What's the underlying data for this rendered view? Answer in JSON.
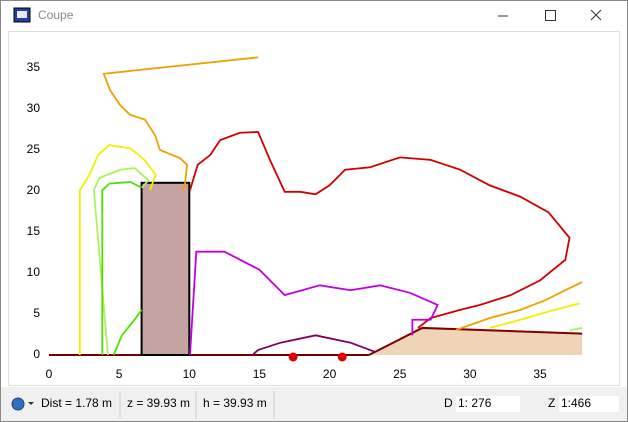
{
  "window": {
    "title": "Coupe"
  },
  "chart_data": {
    "type": "line",
    "xlim": [
      -3,
      40
    ],
    "ylim": [
      -2,
      38
    ],
    "xticks": [
      0,
      5,
      10,
      15,
      20,
      25,
      30,
      35
    ],
    "yticks": [
      0,
      5,
      10,
      15,
      20,
      25,
      30,
      35
    ],
    "series": [
      {
        "color": "#f0a000",
        "x": [
          14.9,
          3.9,
          4.35,
          5.06,
          5.77,
          6.84,
          7.56,
          7.91,
          9.34,
          9.84,
          9.69,
          9.48
        ],
        "values": [
          36.3,
          34.3,
          32.3,
          30.5,
          29.3,
          28.7,
          26.8,
          25.0,
          24.0,
          23.2,
          20.7,
          20.1
        ]
      },
      {
        "color": "#f0a000",
        "x": [
          29.0,
          31.4,
          33.6,
          35.4,
          36.8,
          38.0
        ],
        "values": [
          3.05,
          4.5,
          5.5,
          6.7,
          7.9,
          8.9
        ]
      },
      {
        "color": "#f0f000",
        "x": [
          2.2,
          2.2,
          2.9,
          3.5,
          4.3,
          5.8,
          6.8,
          7.6,
          7.2
        ],
        "values": [
          0,
          20.1,
          22.0,
          24.4,
          25.6,
          25.2,
          23.8,
          22.0,
          20.1
        ]
      },
      {
        "color": "#f0f000",
        "x": [
          31.4,
          33.6,
          35.4,
          37.8
        ],
        "values": [
          3.3,
          4.3,
          5.2,
          6.3
        ]
      },
      {
        "color": "#b0f060",
        "x": [
          4.2,
          3.2,
          3.6,
          5.1,
          6.1,
          7.1,
          6.6
        ],
        "values": [
          0,
          20.1,
          21.6,
          22.6,
          22.8,
          21.3,
          20.4
        ]
      },
      {
        "color": "#b0f060",
        "x": [
          37.1,
          38.0
        ],
        "values": [
          3.0,
          3.3
        ]
      },
      {
        "color": "#50e000",
        "x": [
          3.8,
          3.8,
          4.3,
          5.8,
          6.5
        ],
        "values": [
          0,
          20.1,
          20.9,
          21.1,
          20.5
        ]
      },
      {
        "color": "#50e000",
        "x": [
          4.6,
          5.2,
          6.1,
          6.6
        ],
        "values": [
          0,
          2.4,
          4.3,
          5.5
        ]
      },
      {
        "color": "#d00000",
        "x": [
          10.05,
          10.6,
          11.5,
          12.2,
          13.6,
          14.9,
          15.75,
          16.8,
          17.9,
          19.0,
          20.0,
          21.1,
          22.9,
          25.0,
          27.2,
          29.3,
          31.4,
          33.6,
          35.6,
          37.1,
          36.8,
          35.0,
          32.9,
          30.7,
          29.3,
          27.2,
          26.3
        ],
        "values": [
          20.1,
          23.2,
          24.4,
          26.2,
          27.1,
          27.2,
          23.8,
          19.9,
          19.9,
          19.6,
          20.7,
          22.6,
          22.9,
          24.1,
          23.8,
          22.6,
          20.7,
          19.3,
          17.4,
          14.3,
          11.6,
          9.1,
          7.3,
          6.1,
          5.5,
          4.5,
          3.3
        ]
      },
      {
        "color": "#c000e0",
        "x": [
          10.05,
          10.5,
          12.5,
          15.0,
          16.8,
          19.3,
          21.5,
          23.6,
          25.7,
          27.7,
          27.2,
          25.9,
          25.9
        ],
        "values": [
          0,
          12.6,
          12.6,
          10.4,
          7.3,
          8.5,
          7.9,
          8.5,
          7.6,
          6.1,
          4.3,
          4.3,
          2.4
        ]
      },
      {
        "color": "#800060",
        "x": [
          14.5,
          14.9,
          16.5,
          19.0,
          21.5,
          23.2
        ],
        "values": [
          0,
          0.6,
          1.5,
          2.4,
          1.5,
          0.4
        ]
      }
    ],
    "building": {
      "x": [
        6.6,
        10
      ],
      "top": 21,
      "color": "#c4a4a0"
    },
    "terrain": {
      "x": [
        22.8,
        26.6,
        38,
        38
      ],
      "values": [
        0,
        3.3,
        2.6,
        0
      ],
      "color": "#f0d4b8",
      "edge": "#800000"
    },
    "ground": {
      "x": [
        0,
        22.8
      ],
      "values": [
        0,
        0
      ],
      "color": "#700000"
    },
    "points": {
      "x": [
        17.4,
        20.9
      ],
      "values": [
        0,
        0
      ],
      "color": "#e00000"
    }
  },
  "status_bar": {
    "dist": "Dist = 1.78 m",
    "z": "z = 39.93 m",
    "h": "h = 39.93 m",
    "d_label": "D",
    "d_scale": "1: 276",
    "z_label": "Z",
    "z_scale": "1:466"
  }
}
